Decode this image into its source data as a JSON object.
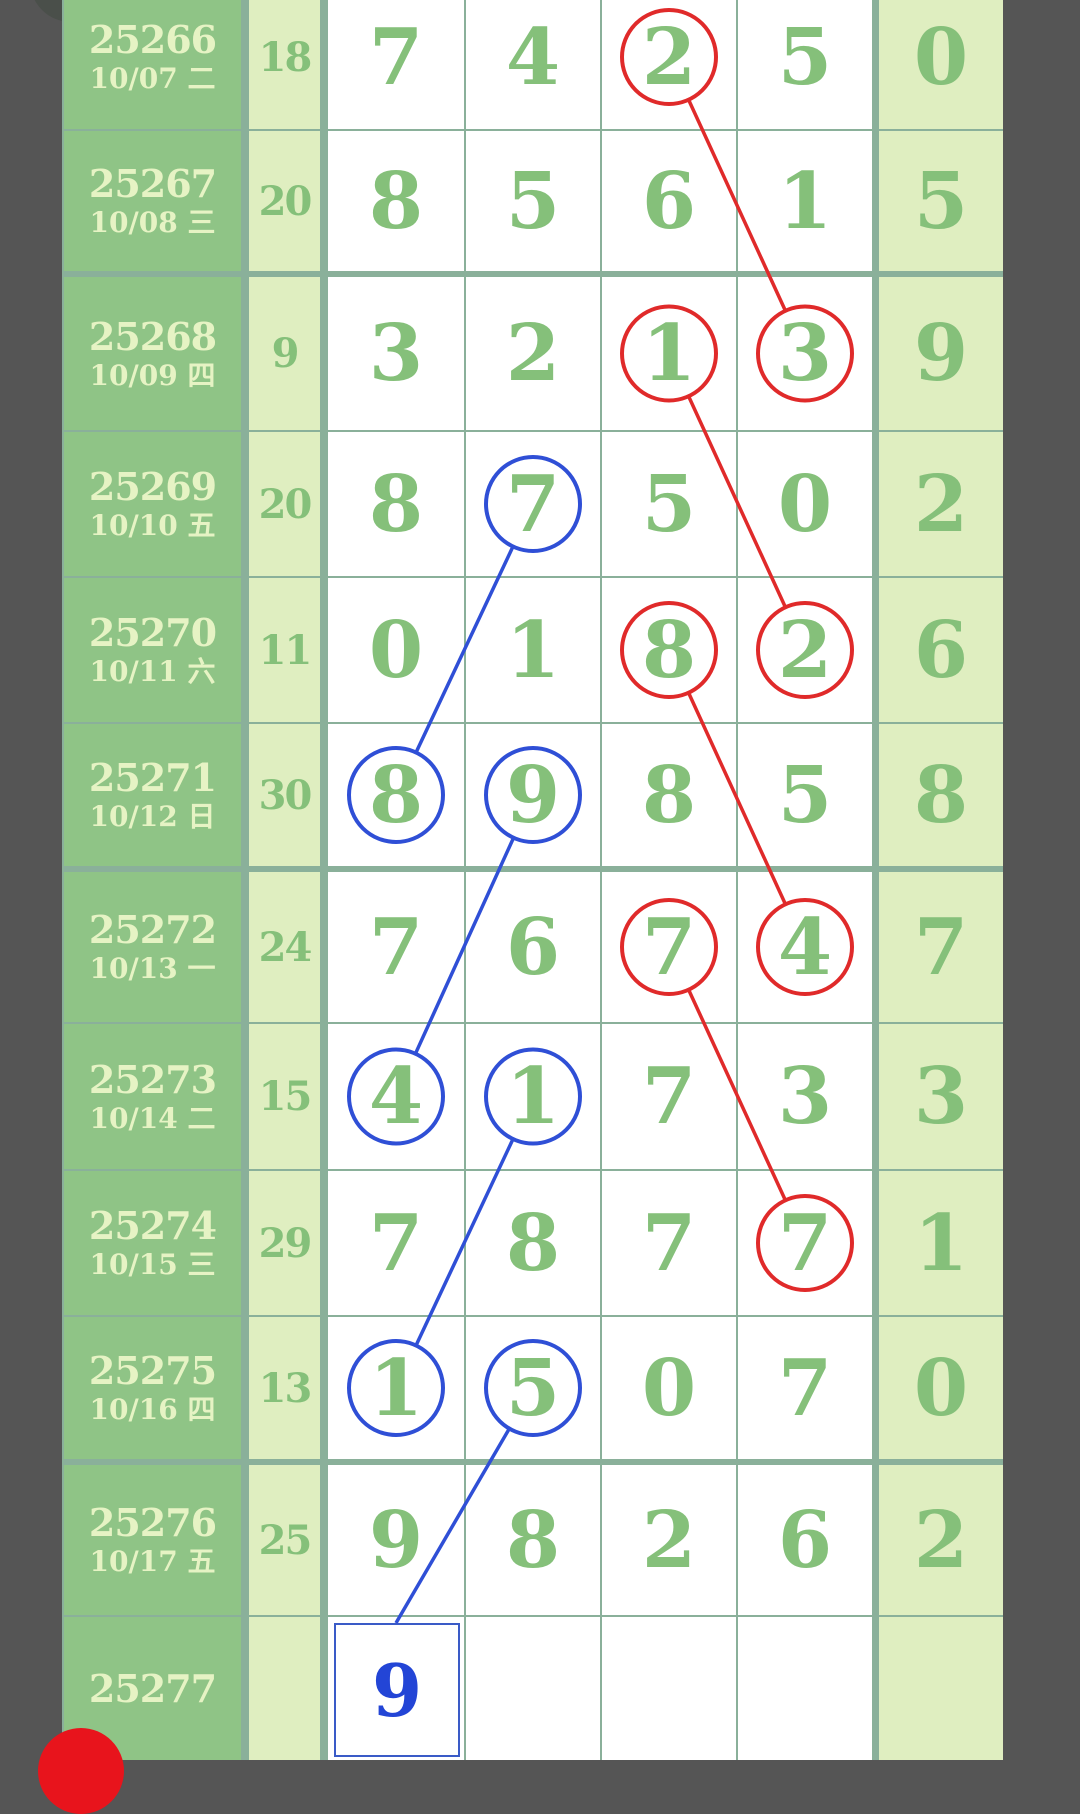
{
  "colors": {
    "red_circle": "#e02a2a",
    "blue_circle": "#2f4fd6",
    "digit_green": "#85c07a",
    "issue_bg": "#8fc486",
    "sum_bg": "#dfeec0"
  },
  "rows": [
    {
      "issue": "25266",
      "date": "10/07 二",
      "sum": "18",
      "digits": [
        "7",
        "4",
        "2",
        "5"
      ],
      "last": "0",
      "red": [
        2
      ],
      "blue": []
    },
    {
      "issue": "25267",
      "date": "10/08 三",
      "sum": "20",
      "digits": [
        "8",
        "5",
        "6",
        "1"
      ],
      "last": "5",
      "red": [],
      "blue": []
    },
    {
      "issue": "25268",
      "date": "10/09 四",
      "sum": "9",
      "digits": [
        "3",
        "2",
        "1",
        "3"
      ],
      "last": "9",
      "red": [
        2,
        3
      ],
      "blue": []
    },
    {
      "issue": "25269",
      "date": "10/10 五",
      "sum": "20",
      "digits": [
        "8",
        "7",
        "5",
        "0"
      ],
      "last": "2",
      "red": [],
      "blue": [
        1
      ]
    },
    {
      "issue": "25270",
      "date": "10/11 六",
      "sum": "11",
      "digits": [
        "0",
        "1",
        "8",
        "2"
      ],
      "last": "6",
      "red": [
        2,
        3
      ],
      "blue": []
    },
    {
      "issue": "25271",
      "date": "10/12 日",
      "sum": "30",
      "digits": [
        "8",
        "9",
        "8",
        "5"
      ],
      "last": "8",
      "red": [],
      "blue": [
        0,
        1
      ]
    },
    {
      "issue": "25272",
      "date": "10/13 一",
      "sum": "24",
      "digits": [
        "7",
        "6",
        "7",
        "4"
      ],
      "last": "7",
      "red": [
        2,
        3
      ],
      "blue": []
    },
    {
      "issue": "25273",
      "date": "10/14 二",
      "sum": "15",
      "digits": [
        "4",
        "1",
        "7",
        "3"
      ],
      "last": "3",
      "red": [],
      "blue": [
        0,
        1
      ]
    },
    {
      "issue": "25274",
      "date": "10/15 三",
      "sum": "29",
      "digits": [
        "7",
        "8",
        "7",
        "7"
      ],
      "last": "1",
      "red": [
        3
      ],
      "blue": []
    },
    {
      "issue": "25275",
      "date": "10/16 四",
      "sum": "13",
      "digits": [
        "1",
        "5",
        "0",
        "7"
      ],
      "last": "0",
      "red": [],
      "blue": [
        0,
        1
      ]
    },
    {
      "issue": "25276",
      "date": "10/17 五",
      "sum": "25",
      "digits": [
        "9",
        "8",
        "2",
        "6"
      ],
      "last": "2",
      "red": [],
      "blue": []
    }
  ],
  "next": {
    "issue": "25277",
    "prediction": "9"
  },
  "red_links": [
    [
      0,
      2,
      2,
      3
    ],
    [
      2,
      2,
      4,
      3
    ],
    [
      4,
      2,
      6,
      3
    ],
    [
      6,
      2,
      8,
      3
    ]
  ],
  "blue_links": [
    [
      3,
      1,
      5,
      0
    ],
    [
      5,
      1,
      7,
      0
    ],
    [
      7,
      1,
      9,
      0
    ],
    [
      9,
      1,
      11,
      0
    ]
  ]
}
